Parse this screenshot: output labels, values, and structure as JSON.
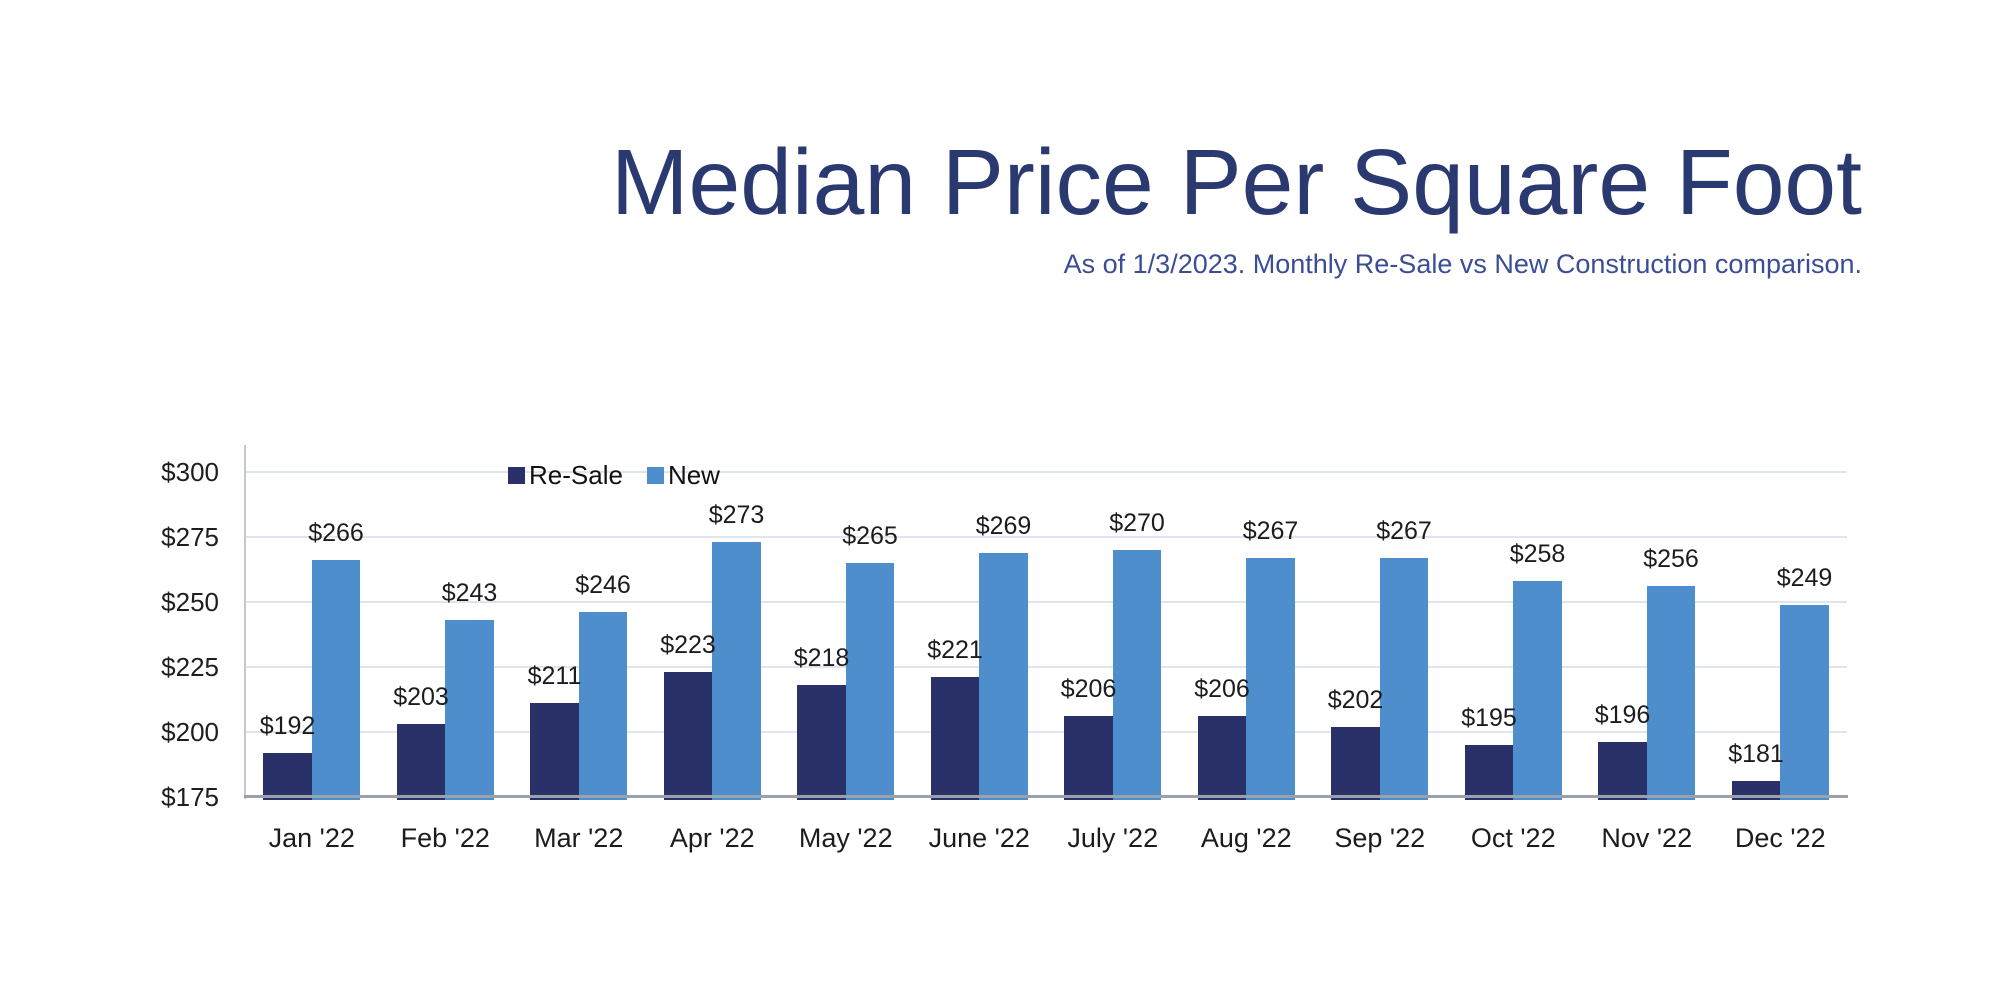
{
  "page": {
    "background_color": "#FFFFFF"
  },
  "header": {
    "title_color": "#2B3971",
    "subtitle_color": "#3A4D95"
  },
  "chart_data": {
    "type": "bar",
    "title": "Median Price Per Square Foot",
    "subtitle": "As of 1/3/2023. Monthly Re-Sale vs New Construction comparison.",
    "categories": [
      "Jan '22",
      "Feb '22",
      "Mar '22",
      "Apr '22",
      "May '22",
      "June '22",
      "July '22",
      "Aug '22",
      "Sep '22",
      "Oct '22",
      "Nov '22",
      "Dec '22"
    ],
    "series": [
      {
        "name": "Re-Sale",
        "color": "#2A3168",
        "values": [
          192,
          203,
          211,
          223,
          218,
          221,
          206,
          206,
          202,
          195,
          196,
          181
        ]
      },
      {
        "name": "New",
        "color": "#4E8ECD",
        "values": [
          266,
          243,
          246,
          273,
          265,
          269,
          270,
          267,
          267,
          258,
          256,
          249
        ]
      }
    ],
    "value_prefix": "$",
    "data_labels_visible": true,
    "y_axis": {
      "min": 175,
      "max": 300,
      "tick_step": 25,
      "ticks": [
        {
          "label": "$300",
          "value": 300
        },
        {
          "label": "$275",
          "value": 275
        },
        {
          "label": "$250",
          "value": 250
        },
        {
          "label": "$225",
          "value": 225
        },
        {
          "label": "$200",
          "value": 200
        },
        {
          "label": "$175",
          "value": 175
        }
      ],
      "grid": true,
      "grid_color": "#DFE5EE",
      "tick_text_color": "#1E1E1E"
    },
    "xlabel": "",
    "ylabel": "",
    "legend_position": "inside-top-left"
  }
}
